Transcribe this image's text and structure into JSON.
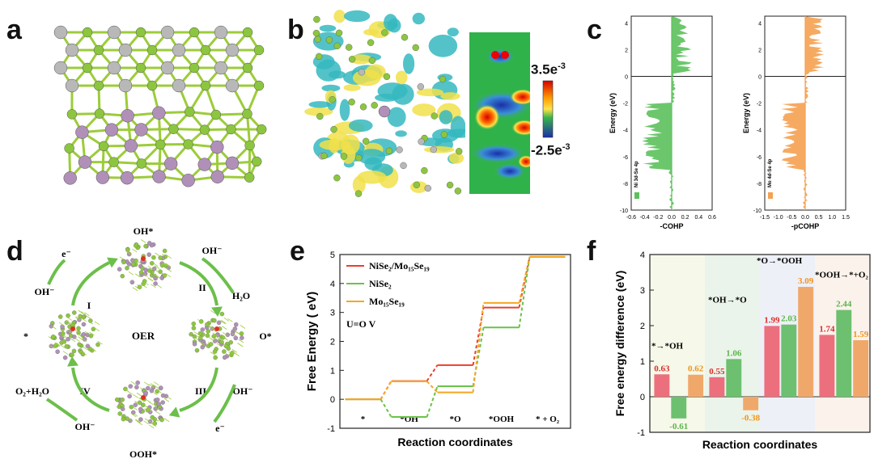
{
  "panels": {
    "a": {
      "letter": "a"
    },
    "b": {
      "letter": "b",
      "colorbar_max": "3.5e",
      "colorbar_max_exp": "-3",
      "colorbar_min": "-2.5e",
      "colorbar_min_exp": "-3"
    },
    "c": {
      "letter": "c"
    },
    "d": {
      "letter": "d"
    },
    "e": {
      "letter": "e"
    },
    "f": {
      "letter": "f"
    }
  },
  "panel_c": {
    "left": {
      "ylabel": "Energy (eV)",
      "xlabel": "-COHP",
      "legend": "Ni 3d-Se 4p",
      "xticks": [
        "-0.6",
        "-0.4",
        "-0.2",
        "0.0",
        "0.2",
        "0.4",
        "0.6"
      ],
      "yticks": [
        "4",
        "2",
        "0",
        "-2",
        "-4",
        "-6",
        "-8",
        "-10"
      ],
      "color": "#5cc15c"
    },
    "right": {
      "ylabel": "Energy (eV)",
      "xlabel": "-pCOHP",
      "legend": "Mo 4d-Se 4p",
      "xticks": [
        "-1.5",
        "-1.0",
        "-0.5",
        "0.0",
        "0.5",
        "1.0",
        "1.5"
      ],
      "yticks": [
        "4",
        "2",
        "0",
        "-2",
        "-4",
        "-6",
        "-8",
        "-10"
      ],
      "color": "#f5a150"
    }
  },
  "panel_d": {
    "center": "OER",
    "states": {
      "top": "OH*",
      "right": "O*",
      "bottom": "OOH*",
      "left": "*"
    },
    "steps": [
      "I",
      "II",
      "III",
      "IV"
    ],
    "species": {
      "oh_top_left": "OH⁻",
      "e_top_left": "e⁻",
      "oh_top_right": "OH⁻",
      "h2o_right": "H₂O",
      "oh_bottom_right": "OH⁻",
      "e_bottom_right": "e⁻",
      "o2_h2o_left": "O₂+H₂O",
      "oh_bottom_left": "OH⁻"
    }
  },
  "chart_data": [
    {
      "panel": "e",
      "type": "line",
      "ylabel": "Free Energy ( eV)",
      "xlabel": "Reaction coordinates",
      "categories": [
        "*",
        "*OH",
        "*O",
        "*OOH",
        "* + O₂"
      ],
      "ylim": [
        -1,
        5
      ],
      "yticks": [
        -1,
        0,
        1,
        2,
        3,
        4,
        5
      ],
      "annotation": "U=O V",
      "series": [
        {
          "name": "NiSe₂/Mo₁₅Se₁₉",
          "color": "#e8402c",
          "values": [
            0,
            0.63,
            1.18,
            3.17,
            4.92
          ]
        },
        {
          "name": "NiSe₂",
          "color": "#6cc24a",
          "values": [
            0,
            -0.61,
            0.45,
            2.48,
            4.92
          ]
        },
        {
          "name": "Mo₁₅Se₁₉",
          "color": "#f5a623",
          "values": [
            0,
            0.62,
            0.24,
            3.33,
            4.92
          ]
        }
      ]
    },
    {
      "panel": "f",
      "type": "bar",
      "ylabel": "Free energy difference (eV)",
      "xlabel": "Reaction coordinates",
      "ylim": [
        -1,
        4
      ],
      "yticks": [
        -1,
        0,
        1,
        2,
        3,
        4
      ],
      "groups": [
        "* → *OH",
        "*OH → *O",
        "*O → *OOH",
        "*OOH → * + O₂"
      ],
      "series": [
        {
          "color": "#ec6f7d",
          "label_color": "#d9302a",
          "values": [
            0.63,
            0.55,
            1.99,
            1.74
          ]
        },
        {
          "color": "#6cc070",
          "label_color": "#5bb64a",
          "values": [
            -0.61,
            1.06,
            2.03,
            2.44
          ]
        },
        {
          "color": "#f0a86a",
          "label_color": "#f0931e",
          "values": [
            0.62,
            -0.38,
            3.09,
            1.59
          ]
        }
      ],
      "value_labels": [
        [
          "0.63",
          "-0.61",
          "0.62"
        ],
        [
          "0.55",
          "1.06",
          "-0.38"
        ],
        [
          "1.99",
          "2.03",
          "3.09"
        ],
        [
          "1.74",
          "2.44",
          "1.59"
        ]
      ],
      "group_labels": [
        "*→*OH",
        "*OH→*O",
        "*O→*OOH",
        "*OOH→*+O₂"
      ],
      "group_bg": [
        "#f6f8e9",
        "#eaf4ea",
        "#eef0f8",
        "#fbf2ec"
      ]
    }
  ]
}
